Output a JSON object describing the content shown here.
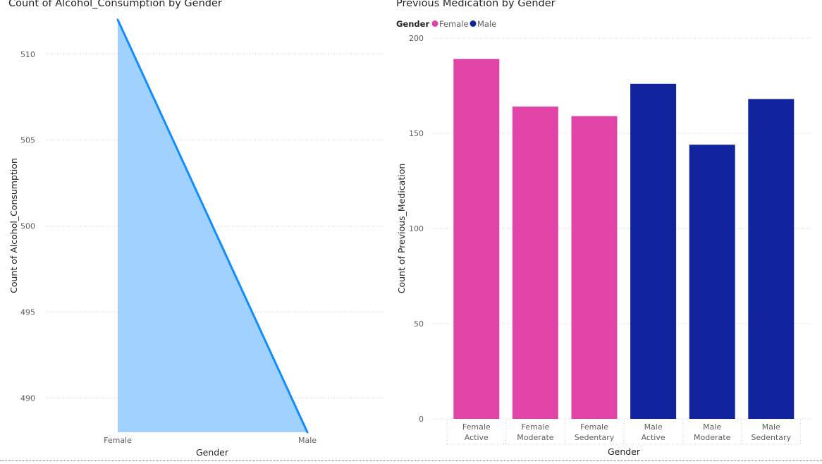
{
  "chart_data": [
    {
      "type": "area",
      "title": "Count of Alcohol_Consumption by Gender",
      "xlabel": "Gender",
      "ylabel": "Count of Alcohol_Consumption",
      "categories": [
        "Female",
        "Male"
      ],
      "values": [
        512,
        488
      ],
      "ylim": [
        488,
        512
      ],
      "yticks": [
        490,
        495,
        500,
        505,
        510
      ],
      "colors": {
        "line": "#118DFF",
        "fill": "#A0D1FF"
      },
      "grid": true
    },
    {
      "type": "bar",
      "title": "Previous Medication by Gender",
      "xlabel": "Gender",
      "ylabel": "Count of Previous_Medication",
      "legend_title": "Gender",
      "legend": [
        {
          "name": "Female",
          "color": "#E044A7"
        },
        {
          "name": "Male",
          "color": "#12239E"
        }
      ],
      "categories": [
        [
          "Female",
          "Active"
        ],
        [
          "Female",
          "Moderate"
        ],
        [
          "Female",
          "Sedentary"
        ],
        [
          "Male",
          "Active"
        ],
        [
          "Male",
          "Moderate"
        ],
        [
          "Male",
          "Sedentary"
        ]
      ],
      "values": [
        189,
        164,
        159,
        176,
        144,
        168
      ],
      "series_of_bar": [
        "Female",
        "Female",
        "Female",
        "Male",
        "Male",
        "Male"
      ],
      "ylim": [
        0,
        200
      ],
      "yticks": [
        0,
        50,
        100,
        150,
        200
      ],
      "grid": true
    }
  ]
}
